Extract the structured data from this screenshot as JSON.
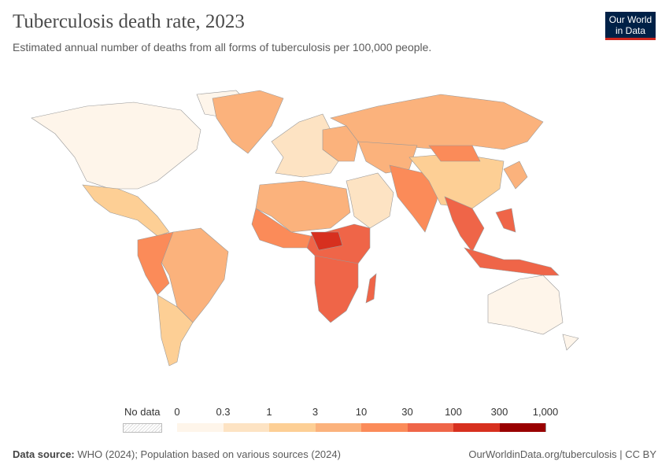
{
  "title": "Tuberculosis death rate, 2023",
  "subtitle": "Estimated annual number of deaths from all forms of tuberculosis per 100,000 people.",
  "logo": {
    "line1": "Our World",
    "line2": "in Data"
  },
  "footer": {
    "source_label": "Data source:",
    "source_text": "WHO (2024); Population based on various sources (2024)",
    "url": "OurWorldinData.org/tuberculosis | CC BY"
  },
  "chart_data": {
    "type": "choropleth",
    "title": "Tuberculosis death rate, 2023",
    "unit": "deaths per 100,000 people",
    "legend": {
      "no_data_label": "No data",
      "ticks": [
        "0",
        "0.3",
        "1",
        "3",
        "10",
        "30",
        "100",
        "300",
        "1,000"
      ],
      "colors": [
        "#fef5ea",
        "#fde3c3",
        "#fdcf95",
        "#fbb27c",
        "#fb8b59",
        "#ef6548",
        "#d7301f",
        "#990000"
      ]
    },
    "regions": [
      {
        "name": "North America",
        "bin": 0
      },
      {
        "name": "Greenland",
        "bin": 3
      },
      {
        "name": "Mexico & Central America",
        "bin": 2
      },
      {
        "name": "South America (east)",
        "bin": 3
      },
      {
        "name": "Andean South America",
        "bin": 4
      },
      {
        "name": "Southern Cone",
        "bin": 2
      },
      {
        "name": "Western Europe",
        "bin": 1
      },
      {
        "name": "Eastern Europe",
        "bin": 3
      },
      {
        "name": "Russia",
        "bin": 3
      },
      {
        "name": "North Africa",
        "bin": 3
      },
      {
        "name": "Egypt & Middle East",
        "bin": 1
      },
      {
        "name": "West Africa",
        "bin": 4
      },
      {
        "name": "Central Africa",
        "bin": 5
      },
      {
        "name": "Central African Republic",
        "bin": 6
      },
      {
        "name": "Southern Africa",
        "bin": 5
      },
      {
        "name": "Madagascar",
        "bin": 5
      },
      {
        "name": "Central Asia",
        "bin": 3
      },
      {
        "name": "South Asia",
        "bin": 4
      },
      {
        "name": "China",
        "bin": 2
      },
      {
        "name": "Mongolia",
        "bin": 4
      },
      {
        "name": "Southeast Asia",
        "bin": 5
      },
      {
        "name": "Indonesia & Philippines",
        "bin": 5
      },
      {
        "name": "Japan & Korea",
        "bin": 3
      },
      {
        "name": "Australia & New Zealand",
        "bin": 0
      }
    ]
  }
}
